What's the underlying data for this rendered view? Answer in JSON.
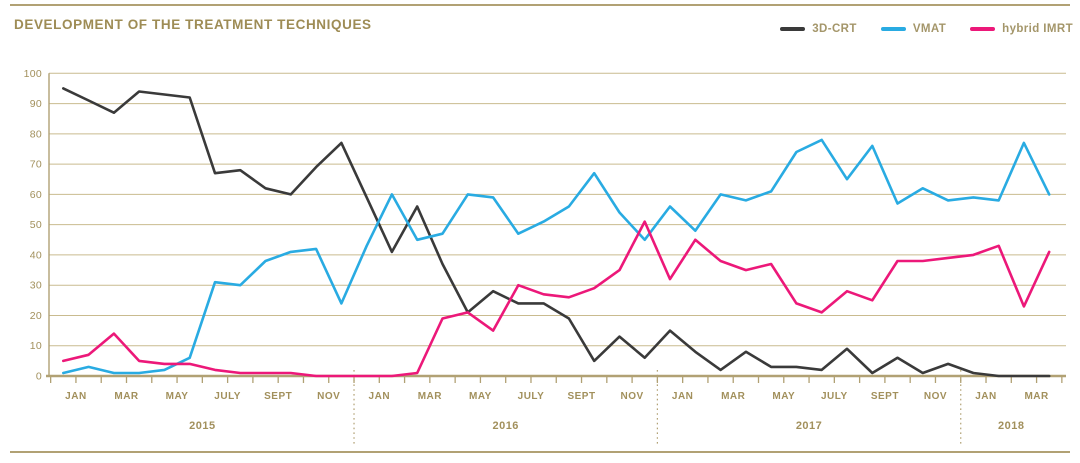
{
  "page_title": "DEVELOPMENT OF THE TREATMENT TECHNIQUES",
  "colors": {
    "title_text": "#9e8c55",
    "legend_text": "#a4966a",
    "axis_text": "#a2905c",
    "grid": "#c9bb8f",
    "axis": "#b1a174",
    "rule": "#b1a174",
    "crt": "#3a3a3a",
    "vmat": "#29abe2",
    "hybrid": "#ec1879"
  },
  "legend": {
    "items": [
      {
        "label": "3D-CRT",
        "series_index": 0
      },
      {
        "label": "VMAT",
        "series_index": 1
      },
      {
        "label": "hybrid IMRT",
        "series_index": 2
      }
    ]
  },
  "chart_data": {
    "type": "line",
    "title": "DEVELOPMENT OF THE TREATMENT TECHNIQUES",
    "x_unit": "month",
    "ylim": [
      0,
      100
    ],
    "yticks": [
      0,
      10,
      20,
      30,
      40,
      50,
      60,
      70,
      80,
      90,
      100
    ],
    "grid": "horizontal",
    "legend_position": "top-right",
    "years": [
      {
        "year": "2015",
        "month_count": 12,
        "tick_labels": [
          "JAN",
          "MAR",
          "MAY",
          "JULY",
          "SEPT",
          "NOV"
        ]
      },
      {
        "year": "2016",
        "month_count": 12,
        "tick_labels": [
          "JAN",
          "MAR",
          "MAY",
          "JULY",
          "SEPT",
          "NOV"
        ]
      },
      {
        "year": "2017",
        "month_count": 12,
        "tick_labels": [
          "JAN",
          "MAR",
          "MAY",
          "JULY",
          "SEPT",
          "NOV"
        ]
      },
      {
        "year": "2018",
        "month_count": 4,
        "tick_labels": [
          "JAN",
          "MAR"
        ]
      }
    ],
    "series": [
      {
        "name": "3D-CRT",
        "color": "#3a3a3a",
        "values": [
          95,
          91,
          87,
          94,
          93,
          92,
          67,
          68,
          62,
          60,
          69,
          77,
          59,
          41,
          56,
          37,
          21,
          28,
          24,
          24,
          19,
          5,
          13,
          6,
          15,
          8,
          2,
          8,
          3,
          3,
          2,
          9,
          1,
          6,
          1,
          4,
          1,
          0,
          0,
          0
        ]
      },
      {
        "name": "VMAT",
        "color": "#29abe2",
        "values": [
          1,
          3,
          1,
          1,
          2,
          6,
          31,
          30,
          38,
          41,
          42,
          24,
          43,
          60,
          45,
          47,
          60,
          59,
          47,
          51,
          56,
          67,
          54,
          45,
          56,
          48,
          60,
          58,
          61,
          74,
          78,
          65,
          76,
          57,
          62,
          58,
          59,
          58,
          77,
          60
        ]
      },
      {
        "name": "hybrid IMRT",
        "color": "#ec1879",
        "values": [
          5,
          7,
          14,
          5,
          4,
          4,
          2,
          1,
          1,
          1,
          0,
          0,
          0,
          0,
          1,
          19,
          21,
          15,
          30,
          27,
          26,
          29,
          35,
          51,
          32,
          45,
          38,
          35,
          37,
          24,
          21,
          28,
          25,
          38,
          38,
          39,
          40,
          43,
          23,
          41
        ]
      }
    ]
  }
}
